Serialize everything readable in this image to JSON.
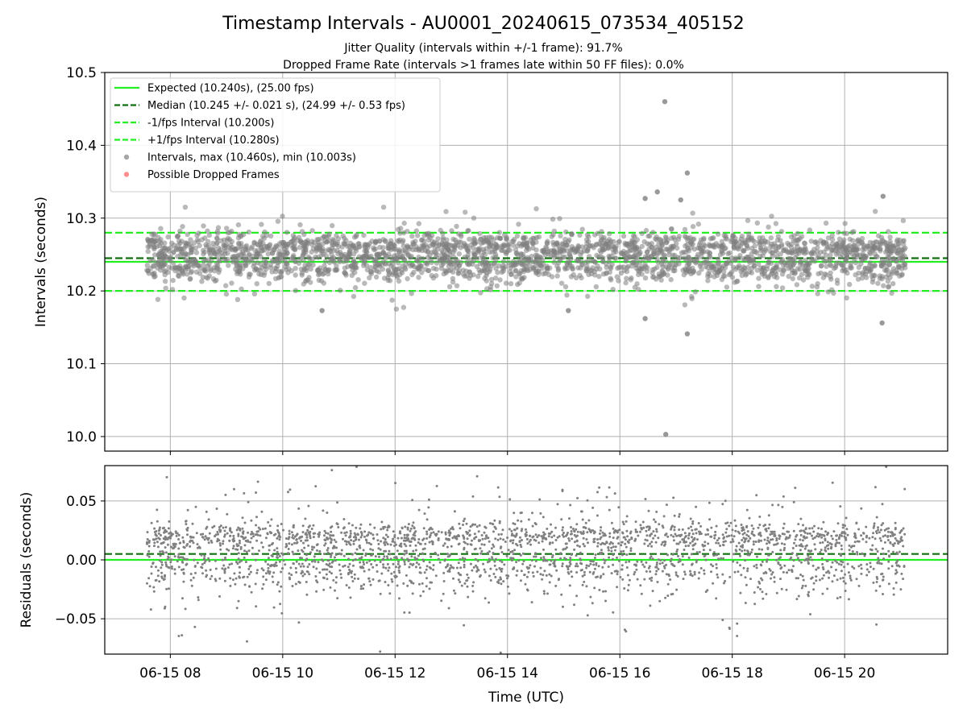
{
  "title": "Timestamp Intervals - AU0001_20240615_073534_405152",
  "subtitle_lines": [
    "Jitter Quality (intervals within +/-1 frame): 91.7%",
    "Dropped Frame Rate (intervals >1 frames late within 50 FF files): 0.0%"
  ],
  "colors": {
    "expected": "#22ee22",
    "median": "#107010",
    "fps_interval": "#22ee22",
    "points": "#808080",
    "dropped": "#ff6060",
    "grid": "#b0b0b0"
  },
  "chart_data": [
    {
      "type": "scatter",
      "ylabel": "Intervals (seconds)",
      "ylim": [
        9.98,
        10.5
      ],
      "yticks": [
        "10.0",
        "10.1",
        "10.2",
        "10.3",
        "10.4",
        "10.5"
      ],
      "ytick_values": [
        10.0,
        10.1,
        10.2,
        10.3,
        10.4,
        10.5
      ],
      "grid": true,
      "legend_position": "top-left",
      "reference_lines": [
        {
          "name": "Expected (10.240s), (25.00 fps)",
          "y": 10.24,
          "style": "solid",
          "color_key": "expected"
        },
        {
          "name": "Median (10.245 +/- 0.021 s), (24.99 +/- 0.53 fps)",
          "y": 10.245,
          "style": "dashed",
          "color_key": "median"
        },
        {
          "name": "-1/fps Interval (10.200s)",
          "y": 10.2,
          "style": "dashed",
          "color_key": "fps_interval"
        },
        {
          "name": "+1/fps Interval (10.280s)",
          "y": 10.28,
          "style": "dashed",
          "color_key": "fps_interval"
        }
      ],
      "series": [
        {
          "name": "Intervals, max (10.460s), min (10.003s)",
          "marker": "circle",
          "color_key": "points"
        },
        {
          "name": "Possible Dropped Frames",
          "marker": "circle",
          "color_key": "dropped",
          "values": []
        }
      ],
      "notable_points": [
        {
          "x": "2024-06-15 16:48",
          "y": 10.46
        },
        {
          "x": "2024-06-15 16:49",
          "y": 10.003
        },
        {
          "x": "2024-06-15 17:12",
          "y": 10.362
        },
        {
          "x": "2024-06-15 16:40",
          "y": 10.336
        },
        {
          "x": "2024-06-15 17:05",
          "y": 10.325
        },
        {
          "x": "2024-06-15 16:27",
          "y": 10.327
        },
        {
          "x": "2024-06-15 20:41",
          "y": 10.33
        },
        {
          "x": "2024-06-15 16:27",
          "y": 10.162
        },
        {
          "x": "2024-06-15 17:12",
          "y": 10.141
        },
        {
          "x": "2024-06-15 20:40",
          "y": 10.156
        },
        {
          "x": "2024-06-15 10:42",
          "y": 10.173
        },
        {
          "x": "2024-06-15 15:05",
          "y": 10.173
        }
      ],
      "bulk_distribution": {
        "x_start": "2024-06-15 07:35",
        "x_end": "2024-06-15 21:05",
        "center": 10.245,
        "spread": 0.021
      }
    },
    {
      "type": "scatter",
      "ylabel": "Residuals (seconds)",
      "xlabel": "Time (UTC)",
      "ylim": [
        -0.08,
        0.08
      ],
      "yticks": [
        "−0.05",
        "0.00",
        "0.05"
      ],
      "ytick_values": [
        -0.05,
        0.0,
        0.05
      ],
      "xticks": [
        "06-15 08",
        "06-15 10",
        "06-15 12",
        "06-15 14",
        "06-15 16",
        "06-15 18",
        "06-15 20"
      ],
      "xtick_values": [
        "2024-06-15 08:00",
        "2024-06-15 10:00",
        "2024-06-15 12:00",
        "2024-06-15 14:00",
        "2024-06-15 16:00",
        "2024-06-15 18:00",
        "2024-06-15 20:00"
      ],
      "xlim": [
        "2024-06-15 06:50",
        "2024-06-15 21:50"
      ],
      "grid": true,
      "reference_lines": [
        {
          "y": 0.0,
          "style": "solid",
          "color_key": "expected"
        },
        {
          "y": 0.005,
          "style": "dashed",
          "color_key": "median"
        }
      ],
      "bulk_distribution": {
        "x_start": "2024-06-15 07:35",
        "x_end": "2024-06-15 21:05",
        "center": 0.005,
        "spread": 0.021
      }
    }
  ]
}
